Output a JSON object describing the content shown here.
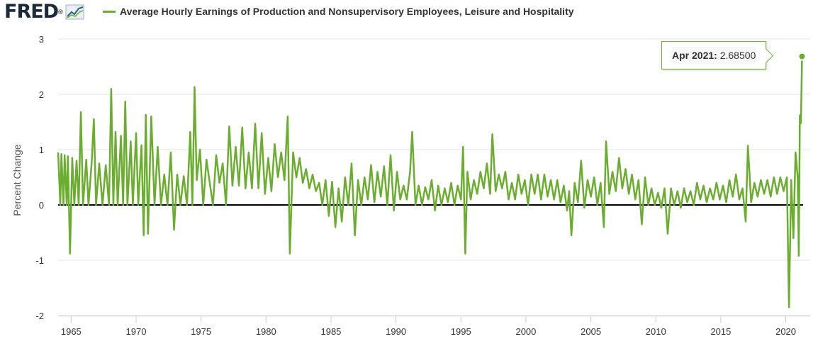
{
  "header": {
    "logo_text": "FRED",
    "logo_mark": "®",
    "logo_icon": "line-chart-icon",
    "series_title": "Average Hourly Earnings of Production and Nonsupervisory Employees, Leisure and Hospitality"
  },
  "tooltip": {
    "date": "Apr 2021:",
    "value": "2.68500"
  },
  "colors": {
    "series": "#6aad2f",
    "zero_line": "#000000",
    "grid": "#e6e6e6",
    "text": "#333333"
  },
  "chart_data": {
    "type": "line",
    "title": "Average Hourly Earnings of Production and Nonsupervisory Employees, Leisure and Hospitality",
    "ylabel": "Percent Change",
    "xlabel": "",
    "x_range": [
      "1964-01",
      "2021-05"
    ],
    "ylim": [
      -2,
      3
    ],
    "y_ticks": [
      3,
      2,
      1,
      0,
      -1,
      -2
    ],
    "y_tick_labels": [
      "3",
      "2",
      "1",
      "0",
      "-1",
      "-2"
    ],
    "x_ticks": [
      1965,
      1970,
      1975,
      1980,
      1985,
      1990,
      1995,
      2000,
      2005,
      2010,
      2015,
      2020
    ],
    "x_tick_labels": [
      "1965",
      "1970",
      "1975",
      "1980",
      "1985",
      "1990",
      "1995",
      "2000",
      "2005",
      "2010",
      "2015",
      "2020"
    ],
    "grid": "horizontal",
    "zero_line": true,
    "highlight": {
      "date": "2021-04",
      "value": 2.685
    },
    "series": [
      {
        "values": [
          [
            "1964-01",
            0.95
          ],
          [
            "1964-03",
            0.0
          ],
          [
            "1964-04",
            0.92
          ],
          [
            "1964-06",
            0.0
          ],
          [
            "1964-07",
            0.9
          ],
          [
            "1964-09",
            0.0
          ],
          [
            "1964-10",
            0.88
          ],
          [
            "1964-12",
            -0.88
          ],
          [
            "1965-02",
            0.85
          ],
          [
            "1965-04",
            0.0
          ],
          [
            "1965-06",
            0.8
          ],
          [
            "1965-08",
            0.0
          ],
          [
            "1965-10",
            1.68
          ],
          [
            "1965-12",
            0.0
          ],
          [
            "1966-03",
            0.82
          ],
          [
            "1966-05",
            0.0
          ],
          [
            "1966-08",
            0.78
          ],
          [
            "1966-10",
            1.55
          ],
          [
            "1966-12",
            0.0
          ],
          [
            "1967-03",
            0.75
          ],
          [
            "1967-06",
            0.0
          ],
          [
            "1967-09",
            0.72
          ],
          [
            "1967-12",
            0.0
          ],
          [
            "1968-02",
            2.1
          ],
          [
            "1968-04",
            0.0
          ],
          [
            "1968-06",
            1.32
          ],
          [
            "1968-08",
            0.0
          ],
          [
            "1968-11",
            1.25
          ],
          [
            "1969-01",
            0.0
          ],
          [
            "1969-03",
            1.87
          ],
          [
            "1969-05",
            0.0
          ],
          [
            "1969-08",
            1.15
          ],
          [
            "1969-10",
            0.0
          ],
          [
            "1970-01",
            1.3
          ],
          [
            "1970-03",
            0.0
          ],
          [
            "1970-06",
            1.08
          ],
          [
            "1970-08",
            -0.55
          ],
          [
            "1970-10",
            1.63
          ],
          [
            "1970-12",
            -0.52
          ],
          [
            "1971-03",
            1.6
          ],
          [
            "1971-06",
            0.0
          ],
          [
            "1971-09",
            1.05
          ],
          [
            "1971-12",
            0.0
          ],
          [
            "1972-03",
            0.55
          ],
          [
            "1972-06",
            0.0
          ],
          [
            "1972-09",
            0.95
          ],
          [
            "1972-12",
            -0.45
          ],
          [
            "1973-03",
            0.55
          ],
          [
            "1973-06",
            0.0
          ],
          [
            "1973-09",
            0.52
          ],
          [
            "1973-12",
            0.0
          ],
          [
            "1974-03",
            1.32
          ],
          [
            "1974-05",
            0.0
          ],
          [
            "1974-07",
            2.13
          ],
          [
            "1974-09",
            0.45
          ],
          [
            "1974-12",
            1.0
          ],
          [
            "1975-03",
            0.0
          ],
          [
            "1975-06",
            0.82
          ],
          [
            "1975-09",
            0.4
          ],
          [
            "1975-12",
            0.0
          ],
          [
            "1976-03",
            0.9
          ],
          [
            "1976-06",
            0.4
          ],
          [
            "1976-09",
            0.75
          ],
          [
            "1976-12",
            0.0
          ],
          [
            "1977-03",
            1.42
          ],
          [
            "1977-06",
            0.35
          ],
          [
            "1977-09",
            1.05
          ],
          [
            "1977-12",
            0.35
          ],
          [
            "1978-03",
            1.4
          ],
          [
            "1978-06",
            0.3
          ],
          [
            "1978-09",
            0.95
          ],
          [
            "1978-12",
            0.3
          ],
          [
            "1979-03",
            1.47
          ],
          [
            "1979-06",
            0.3
          ],
          [
            "1979-09",
            1.3
          ],
          [
            "1979-12",
            0.2
          ],
          [
            "1980-03",
            0.85
          ],
          [
            "1980-06",
            0.25
          ],
          [
            "1980-09",
            1.1
          ],
          [
            "1980-12",
            0.5
          ],
          [
            "1981-03",
            0.95
          ],
          [
            "1981-06",
            0.45
          ],
          [
            "1981-09",
            1.6
          ],
          [
            "1981-11",
            -0.88
          ],
          [
            "1982-02",
            0.95
          ],
          [
            "1982-05",
            0.5
          ],
          [
            "1982-08",
            0.85
          ],
          [
            "1982-11",
            0.4
          ],
          [
            "1983-02",
            0.65
          ],
          [
            "1983-05",
            0.3
          ],
          [
            "1983-08",
            0.55
          ],
          [
            "1983-11",
            0.25
          ],
          [
            "1984-02",
            0.4
          ],
          [
            "1984-05",
            0.0
          ],
          [
            "1984-08",
            0.45
          ],
          [
            "1984-11",
            -0.2
          ],
          [
            "1985-02",
            0.42
          ],
          [
            "1985-05",
            -0.4
          ],
          [
            "1985-08",
            0.3
          ],
          [
            "1985-11",
            -0.3
          ],
          [
            "1986-02",
            0.5
          ],
          [
            "1986-05",
            0.0
          ],
          [
            "1986-08",
            0.75
          ],
          [
            "1986-11",
            -0.55
          ],
          [
            "1987-02",
            0.45
          ],
          [
            "1987-05",
            0.0
          ],
          [
            "1987-08",
            0.5
          ],
          [
            "1987-11",
            0.1
          ],
          [
            "1988-02",
            0.72
          ],
          [
            "1988-05",
            0.05
          ],
          [
            "1988-08",
            0.6
          ],
          [
            "1988-11",
            0.15
          ],
          [
            "1989-02",
            0.7
          ],
          [
            "1989-05",
            0.0
          ],
          [
            "1989-08",
            0.9
          ],
          [
            "1989-11",
            -0.1
          ],
          [
            "1990-02",
            0.6
          ],
          [
            "1990-05",
            0.1
          ],
          [
            "1990-08",
            0.35
          ],
          [
            "1990-11",
            0.1
          ],
          [
            "1991-02",
            0.6
          ],
          [
            "1991-04",
            1.32
          ],
          [
            "1991-07",
            0.0
          ],
          [
            "1991-10",
            0.35
          ],
          [
            "1992-01",
            0.0
          ],
          [
            "1992-04",
            0.32
          ],
          [
            "1992-07",
            0.1
          ],
          [
            "1992-10",
            0.45
          ],
          [
            "1993-01",
            -0.1
          ],
          [
            "1993-04",
            0.35
          ],
          [
            "1993-07",
            0.0
          ],
          [
            "1993-10",
            0.3
          ],
          [
            "1994-01",
            0.05
          ],
          [
            "1994-04",
            0.4
          ],
          [
            "1994-07",
            0.0
          ],
          [
            "1994-10",
            0.35
          ],
          [
            "1995-01",
            0.1
          ],
          [
            "1995-03",
            1.05
          ],
          [
            "1995-05",
            -0.88
          ],
          [
            "1995-07",
            0.6
          ],
          [
            "1995-10",
            0.1
          ],
          [
            "1996-01",
            0.45
          ],
          [
            "1996-04",
            0.2
          ],
          [
            "1996-07",
            0.6
          ],
          [
            "1996-10",
            0.3
          ],
          [
            "1997-01",
            0.75
          ],
          [
            "1997-04",
            0.2
          ],
          [
            "1997-06",
            1.28
          ],
          [
            "1997-09",
            0.25
          ],
          [
            "1997-12",
            0.55
          ],
          [
            "1998-03",
            0.3
          ],
          [
            "1998-06",
            0.6
          ],
          [
            "1998-09",
            0.1
          ],
          [
            "1998-12",
            0.4
          ],
          [
            "1999-03",
            0.1
          ],
          [
            "1999-06",
            0.55
          ],
          [
            "1999-09",
            0.2
          ],
          [
            "1999-12",
            0.45
          ],
          [
            "2000-03",
            0.0
          ],
          [
            "2000-06",
            0.55
          ],
          [
            "2000-09",
            0.2
          ],
          [
            "2000-12",
            0.55
          ],
          [
            "2001-03",
            0.1
          ],
          [
            "2001-06",
            0.55
          ],
          [
            "2001-09",
            0.15
          ],
          [
            "2001-12",
            0.45
          ],
          [
            "2002-03",
            0.1
          ],
          [
            "2002-06",
            0.45
          ],
          [
            "2002-09",
            0.05
          ],
          [
            "2002-12",
            0.35
          ],
          [
            "2003-03",
            -0.1
          ],
          [
            "2003-05",
            0.25
          ],
          [
            "2003-07",
            -0.55
          ],
          [
            "2003-10",
            0.4
          ],
          [
            "2004-01",
            0.05
          ],
          [
            "2004-04",
            0.8
          ],
          [
            "2004-07",
            -0.05
          ],
          [
            "2004-10",
            0.45
          ],
          [
            "2005-01",
            0.15
          ],
          [
            "2005-04",
            0.5
          ],
          [
            "2005-07",
            0.0
          ],
          [
            "2005-10",
            0.4
          ],
          [
            "2006-01",
            -0.4
          ],
          [
            "2006-03",
            1.15
          ],
          [
            "2006-06",
            0.2
          ],
          [
            "2006-09",
            0.6
          ],
          [
            "2006-12",
            0.25
          ],
          [
            "2007-03",
            0.85
          ],
          [
            "2007-06",
            0.3
          ],
          [
            "2007-09",
            0.65
          ],
          [
            "2007-12",
            0.2
          ],
          [
            "2008-03",
            0.55
          ],
          [
            "2008-06",
            0.1
          ],
          [
            "2008-09",
            0.45
          ],
          [
            "2008-12",
            -0.35
          ],
          [
            "2009-03",
            0.5
          ],
          [
            "2009-06",
            0.0
          ],
          [
            "2009-09",
            0.3
          ],
          [
            "2009-12",
            0.0
          ],
          [
            "2010-03",
            0.22
          ],
          [
            "2010-06",
            -0.05
          ],
          [
            "2010-09",
            0.3
          ],
          [
            "2010-12",
            -0.52
          ],
          [
            "2011-03",
            0.3
          ],
          [
            "2011-06",
            0.0
          ],
          [
            "2011-09",
            0.25
          ],
          [
            "2011-12",
            -0.05
          ],
          [
            "2012-03",
            0.3
          ],
          [
            "2012-06",
            0.05
          ],
          [
            "2012-09",
            0.25
          ],
          [
            "2012-12",
            0.0
          ],
          [
            "2013-03",
            0.4
          ],
          [
            "2013-06",
            0.1
          ],
          [
            "2013-09",
            0.35
          ],
          [
            "2013-12",
            0.05
          ],
          [
            "2014-03",
            0.3
          ],
          [
            "2014-06",
            0.1
          ],
          [
            "2014-09",
            0.4
          ],
          [
            "2014-12",
            0.1
          ],
          [
            "2015-03",
            0.35
          ],
          [
            "2015-06",
            0.05
          ],
          [
            "2015-09",
            0.45
          ],
          [
            "2015-12",
            0.15
          ],
          [
            "2016-03",
            0.55
          ],
          [
            "2016-06",
            0.1
          ],
          [
            "2016-09",
            0.3
          ],
          [
            "2016-12",
            -0.3
          ],
          [
            "2017-02",
            1.07
          ],
          [
            "2017-05",
            0.05
          ],
          [
            "2017-08",
            0.4
          ],
          [
            "2017-11",
            0.15
          ],
          [
            "2018-02",
            0.45
          ],
          [
            "2018-05",
            0.2
          ],
          [
            "2018-08",
            0.45
          ],
          [
            "2018-11",
            0.15
          ],
          [
            "2019-02",
            0.5
          ],
          [
            "2019-05",
            0.2
          ],
          [
            "2019-08",
            0.5
          ],
          [
            "2019-11",
            0.25
          ],
          [
            "2020-01",
            0.42
          ],
          [
            "2020-02",
            0.5
          ],
          [
            "2020-03",
            -0.7
          ],
          [
            "2020-04",
            -1.85
          ],
          [
            "2020-06",
            0.45
          ],
          [
            "2020-08",
            -0.6
          ],
          [
            "2020-10",
            0.95
          ],
          [
            "2020-12",
            0.5
          ],
          [
            "2021-01",
            -0.92
          ],
          [
            "2021-02",
            1.62
          ],
          [
            "2021-03",
            1.48
          ],
          [
            "2021-04",
            2.685
          ]
        ]
      }
    ]
  }
}
